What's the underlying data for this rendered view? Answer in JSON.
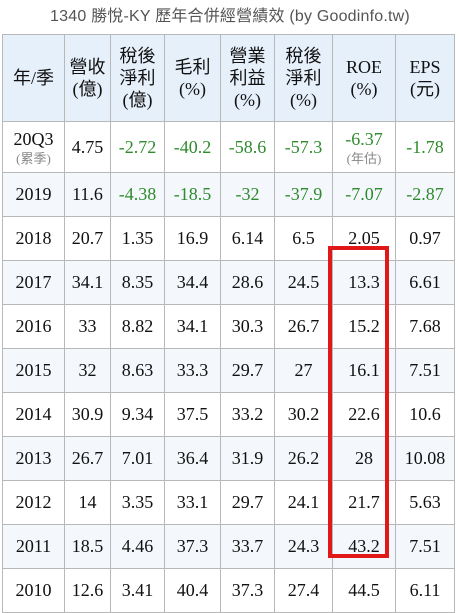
{
  "title": "1340 勝悅-KY 歷年合併經營績效 (by Goodinfo.tw)",
  "headers": [
    "年/季",
    "營收\n(億)",
    "稅後\n淨利\n(億)",
    "毛利\n(%)",
    "營業\n利益\n(%)",
    "稅後\n淨利\n(%)",
    "ROE\n(%)",
    "EPS\n(元)"
  ],
  "rows": [
    {
      "period": "20Q3",
      "period_note": "(累季)",
      "revenue": "4.75",
      "net_income": "-2.72",
      "gross_margin": "-40.2",
      "operating_margin": "-58.6",
      "net_margin": "-57.3",
      "roe": "-6.37",
      "roe_note": "(年估)",
      "eps": "-1.78"
    },
    {
      "period": "2019",
      "revenue": "11.6",
      "net_income": "-4.38",
      "gross_margin": "-18.5",
      "operating_margin": "-32",
      "net_margin": "-37.9",
      "roe": "-7.07",
      "eps": "-2.87"
    },
    {
      "period": "2018",
      "revenue": "20.7",
      "net_income": "1.35",
      "gross_margin": "16.9",
      "operating_margin": "6.14",
      "net_margin": "6.5",
      "roe": "2.05",
      "eps": "0.97"
    },
    {
      "period": "2017",
      "revenue": "34.1",
      "net_income": "8.35",
      "gross_margin": "34.4",
      "operating_margin": "28.6",
      "net_margin": "24.5",
      "roe": "13.3",
      "eps": "6.61"
    },
    {
      "period": "2016",
      "revenue": "33",
      "net_income": "8.82",
      "gross_margin": "34.1",
      "operating_margin": "30.3",
      "net_margin": "26.7",
      "roe": "15.2",
      "eps": "7.68"
    },
    {
      "period": "2015",
      "revenue": "32",
      "net_income": "8.63",
      "gross_margin": "33.3",
      "operating_margin": "29.7",
      "net_margin": "27",
      "roe": "16.1",
      "eps": "7.51"
    },
    {
      "period": "2014",
      "revenue": "30.9",
      "net_income": "9.34",
      "gross_margin": "37.5",
      "operating_margin": "33.2",
      "net_margin": "30.2",
      "roe": "22.6",
      "eps": "10.6"
    },
    {
      "period": "2013",
      "revenue": "26.7",
      "net_income": "7.01",
      "gross_margin": "36.4",
      "operating_margin": "31.9",
      "net_margin": "26.2",
      "roe": "28",
      "eps": "10.08"
    },
    {
      "period": "2012",
      "revenue": "14",
      "net_income": "3.35",
      "gross_margin": "33.1",
      "operating_margin": "29.7",
      "net_margin": "24.1",
      "roe": "21.7",
      "eps": "5.63"
    },
    {
      "period": "2011",
      "revenue": "18.5",
      "net_income": "4.46",
      "gross_margin": "37.3",
      "operating_margin": "33.7",
      "net_margin": "24.3",
      "roe": "43.2",
      "eps": "7.51"
    },
    {
      "period": "2010",
      "revenue": "12.6",
      "net_income": "3.41",
      "gross_margin": "40.4",
      "operating_margin": "37.3",
      "net_margin": "27.4",
      "roe": "44.5",
      "eps": "6.11"
    }
  ],
  "colors": {
    "header_bg": "#e6f0fb",
    "negative": "#2e8b2e",
    "highlight": "#e01818"
  }
}
